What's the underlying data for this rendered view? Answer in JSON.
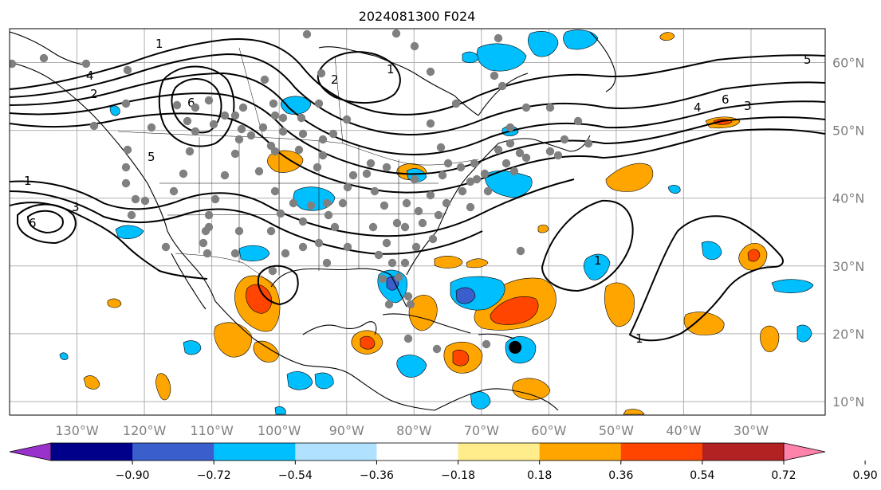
{
  "title": "2024081300 F024",
  "map": {
    "lon_range": [
      -140,
      -19
    ],
    "lat_range": [
      8,
      65
    ],
    "lon_ticks": [
      {
        "value": -130,
        "label": "130°W"
      },
      {
        "value": -120,
        "label": "120°W"
      },
      {
        "value": -110,
        "label": "110°W"
      },
      {
        "value": -100,
        "label": "100°W"
      },
      {
        "value": -90,
        "label": "90°W"
      },
      {
        "value": -80,
        "label": "80°W"
      },
      {
        "value": -70,
        "label": "70°W"
      },
      {
        "value": -60,
        "label": "60°W"
      },
      {
        "value": -50,
        "label": "50°W"
      },
      {
        "value": -40,
        "label": "40°W"
      },
      {
        "value": -30,
        "label": "30°W"
      }
    ],
    "lat_ticks": [
      {
        "value": 60,
        "label": "60°N"
      },
      {
        "value": 50,
        "label": "50°N"
      },
      {
        "value": 40,
        "label": "40°N"
      },
      {
        "value": 30,
        "label": "30°N"
      },
      {
        "value": 20,
        "label": "20°N"
      },
      {
        "value": 10,
        "label": "10°N"
      }
    ],
    "gridlines": true,
    "contour_labels": [
      "1",
      "2",
      "3",
      "4",
      "5",
      "6"
    ],
    "marked_point": {
      "lon": -65,
      "lat": 18
    }
  },
  "colorbar": {
    "extend": "both",
    "colors": [
      "#9932cc",
      "#00008b",
      "#3a5fcd",
      "#00bfff",
      "#b0e2ff",
      "#ffffff",
      "#ffec8b",
      "#ffa500",
      "#ff4500",
      "#b22222",
      "#ff82ab"
    ],
    "ticks": [
      "−0.90",
      "−0.72",
      "−0.54",
      "−0.36",
      "−0.18",
      "0.18",
      "0.36",
      "0.54",
      "0.72",
      "0.90"
    ]
  },
  "colors": {
    "sky_blue": "#00bfff",
    "light_blue": "#b0e2ff",
    "royal_blue": "#3a5fcd",
    "yellow": "#ffec8b",
    "orange": "#ffa500",
    "red_orange": "#ff4500",
    "firebrick": "#b22222",
    "station_gray": "#808080"
  }
}
